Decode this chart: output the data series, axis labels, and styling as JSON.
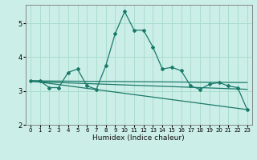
{
  "xlabel": "Humidex (Indice chaleur)",
  "bg_color": "#cceee8",
  "grid_color": "#aaddcc",
  "line_color": "#1a7a6a",
  "xlim": [
    -0.5,
    23.5
  ],
  "ylim": [
    2.0,
    5.55
  ],
  "yticks": [
    2,
    3,
    4,
    5
  ],
  "xticks": [
    0,
    1,
    2,
    3,
    4,
    5,
    6,
    7,
    8,
    9,
    10,
    11,
    12,
    13,
    14,
    15,
    16,
    17,
    18,
    19,
    20,
    21,
    22,
    23
  ],
  "series1_x": [
    0,
    1,
    2,
    3,
    4,
    5,
    6,
    7,
    8,
    9,
    10,
    11,
    12,
    13,
    14,
    15,
    16,
    17,
    18,
    19,
    20,
    21,
    22,
    23
  ],
  "series1_y": [
    3.3,
    3.3,
    3.1,
    3.1,
    3.55,
    3.65,
    3.15,
    3.05,
    3.75,
    4.7,
    5.35,
    4.8,
    4.8,
    4.3,
    3.65,
    3.7,
    3.6,
    3.15,
    3.05,
    3.2,
    3.25,
    3.15,
    3.1,
    2.45
  ],
  "series2_x": [
    0,
    23
  ],
  "series2_y": [
    3.3,
    3.25
  ],
  "series3_x": [
    0,
    23
  ],
  "series3_y": [
    3.3,
    2.45
  ],
  "series4_x": [
    0,
    23
  ],
  "series4_y": [
    3.28,
    3.05
  ]
}
